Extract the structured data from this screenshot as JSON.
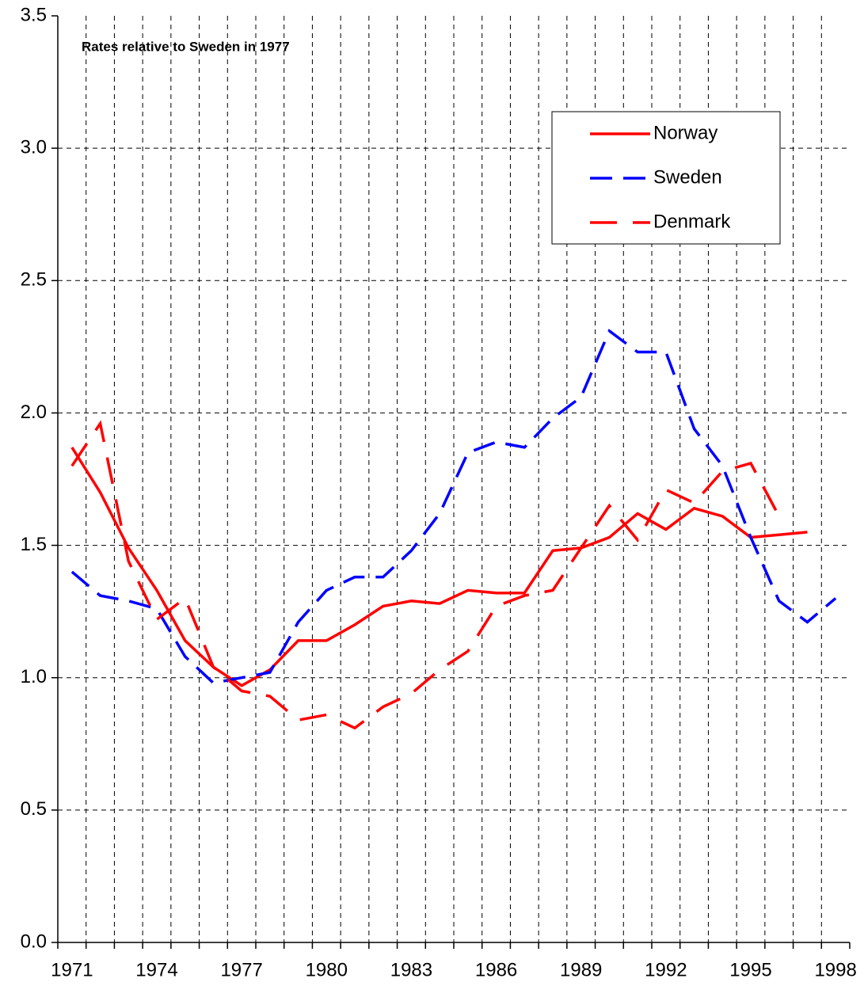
{
  "chart_data": {
    "type": "line",
    "annotation": "Rates relative to Sweden in 1977",
    "categories": [
      "1971",
      null,
      null,
      "1974",
      null,
      null,
      "1977",
      null,
      null,
      "1980",
      null,
      null,
      "1983",
      null,
      null,
      "1986",
      null,
      null,
      "1989",
      null,
      null,
      "1992",
      null,
      null,
      "1995",
      null,
      null,
      "1998"
    ],
    "series": [
      {
        "name": "Norway",
        "color": "#ff0000",
        "dash": "solid",
        "values": [
          1.87,
          1.7,
          1.49,
          1.33,
          1.14,
          1.04,
          0.97,
          1.03,
          1.14,
          1.14,
          1.2,
          1.27,
          1.29,
          1.28,
          1.33,
          1.32,
          1.32,
          1.48,
          1.49,
          1.53,
          1.62,
          1.56,
          1.64,
          1.61,
          1.53,
          1.54,
          1.55,
          null
        ]
      },
      {
        "name": "Sweden",
        "color": "#0000ff",
        "dash": "dashed",
        "values": [
          1.4,
          1.31,
          1.29,
          1.26,
          1.08,
          0.98,
          1.0,
          1.02,
          1.21,
          1.33,
          1.38,
          1.38,
          1.48,
          1.62,
          1.85,
          1.89,
          1.87,
          1.98,
          2.06,
          2.31,
          2.23,
          2.23,
          1.94,
          1.8,
          1.53,
          1.29,
          1.21,
          1.3
        ]
      },
      {
        "name": "Denmark",
        "color": "#ff0000",
        "dash": "long-dashed",
        "values": [
          1.8,
          1.96,
          1.44,
          1.22,
          1.3,
          1.04,
          0.95,
          0.93,
          0.84,
          0.86,
          0.81,
          0.89,
          0.94,
          1.03,
          1.1,
          1.27,
          1.31,
          1.33,
          1.49,
          1.65,
          1.52,
          1.71,
          1.66,
          1.78,
          1.81,
          1.61,
          null,
          null
        ]
      }
    ],
    "ylim": [
      0,
      3.5
    ],
    "yticks": [
      {
        "value": 0,
        "label": "0.0"
      },
      0.5,
      {
        "value": 1,
        "label": "1.0"
      },
      1.5,
      {
        "value": 2,
        "label": "2.0"
      },
      2.5,
      {
        "value": 3,
        "label": "3.0"
      },
      3.5
    ],
    "grid": true,
    "legend": "upper-right"
  }
}
